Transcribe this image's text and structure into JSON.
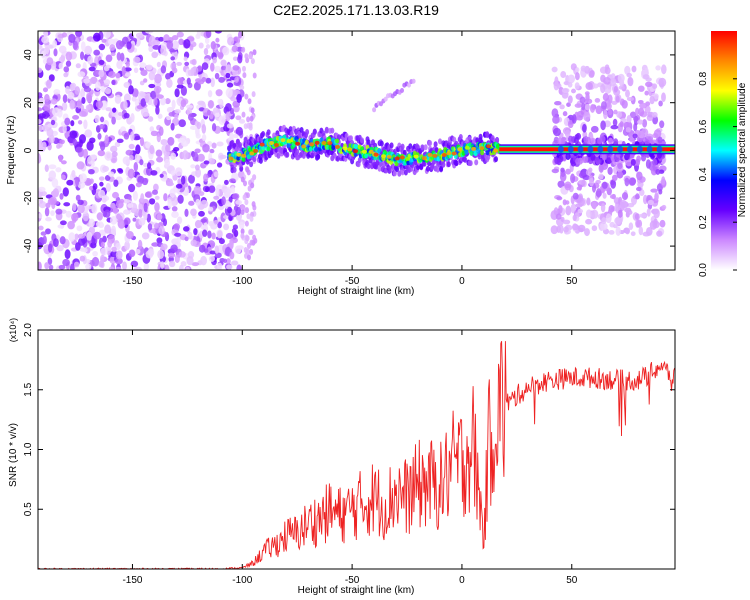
{
  "title": "C2E2.2025.171.13.03.R19",
  "chart_data": [
    {
      "type": "heatmap",
      "xlabel": "Height of straight line (km)",
      "ylabel": "Frequency (Hz)",
      "xlim": [
        -193,
        97
      ],
      "ylim": [
        -50,
        50
      ],
      "xticks": [
        -150,
        -100,
        -50,
        0,
        50
      ],
      "yticks": [
        -40,
        -20,
        0,
        20,
        40
      ],
      "colorbar": {
        "label": "Normalized spectral amplitude",
        "range": [
          0.0,
          1.0
        ],
        "ticks": [
          0.0,
          0.2,
          0.4,
          0.6,
          0.8
        ],
        "tick_labels": [
          "0.0",
          "0.2",
          "0.4",
          "0.6",
          "0.8"
        ],
        "colormap": [
          "#ffffff",
          "#cc88ff",
          "#6600ff",
          "#0000ff",
          "#00ffff",
          "#00ff00",
          "#ffff00",
          "#ff8800",
          "#ff0000"
        ]
      },
      "regions": [
        {
          "name": "noise",
          "x": [
            -193,
            -100
          ],
          "freq_spread": 50,
          "amplitude": 0.15
        },
        {
          "name": "wandering_signal",
          "x": [
            -106,
            17
          ],
          "center_freq": [
            [
              -106,
              -3
            ],
            [
              -100,
              -2
            ],
            [
              -90,
              2
            ],
            [
              -80,
              4
            ],
            [
              -70,
              2
            ],
            [
              -60,
              3
            ],
            [
              -50,
              0
            ],
            [
              -40,
              -1
            ],
            [
              -30,
              -4
            ],
            [
              -20,
              -3
            ],
            [
              -10,
              -2
            ],
            [
              0,
              0
            ],
            [
              10,
              1
            ],
            [
              17,
              1
            ]
          ],
          "amplitude": 0.5
        },
        {
          "name": "steady_tone",
          "x": [
            17,
            97
          ],
          "center_freq": 0.5,
          "amplitude": 0.95
        },
        {
          "name": "sidebands",
          "x": [
            42,
            92
          ],
          "freq_spread": 35,
          "amplitude": 0.25
        },
        {
          "name": "faint_streak",
          "x": [
            -40,
            -22
          ],
          "freq": [
            18,
            29
          ],
          "amplitude": 0.2
        }
      ]
    },
    {
      "type": "line",
      "xlabel": "Height of straight line (km)",
      "ylabel": "SNR (10 * v/v)",
      "scale_label": "(x10⁴)",
      "xlim": [
        -193,
        97
      ],
      "ylim": [
        0,
        2.0
      ],
      "xticks": [
        -150,
        -100,
        -50,
        0,
        50
      ],
      "yticks": [
        0.5,
        1.0,
        1.5,
        2.0
      ],
      "ytick_labels": [
        "0.5",
        "1.0",
        "1.5",
        "2.0"
      ],
      "series": [
        {
          "color": "#ee2222",
          "x": [
            -193,
            -150,
            -110,
            -100,
            -95,
            -90,
            -85,
            -80,
            -75,
            -70,
            -65,
            -60,
            -55,
            -50,
            -45,
            -40,
            -35,
            -30,
            -25,
            -20,
            -15,
            -10,
            -5,
            0,
            5,
            8,
            10,
            12,
            15,
            20,
            30,
            40,
            50,
            60,
            70,
            80,
            85,
            90,
            97
          ],
          "y": [
            0.0,
            0.0,
            0.0,
            0.01,
            0.05,
            0.15,
            0.2,
            0.28,
            0.3,
            0.38,
            0.42,
            0.48,
            0.45,
            0.5,
            0.55,
            0.6,
            0.52,
            0.65,
            0.6,
            0.7,
            0.72,
            0.68,
            0.85,
            0.9,
            1.05,
            0.6,
            0.25,
            1.0,
            1.3,
            1.38,
            1.52,
            1.58,
            1.6,
            1.6,
            1.58,
            1.58,
            1.62,
            1.7,
            1.6
          ]
        }
      ]
    }
  ]
}
